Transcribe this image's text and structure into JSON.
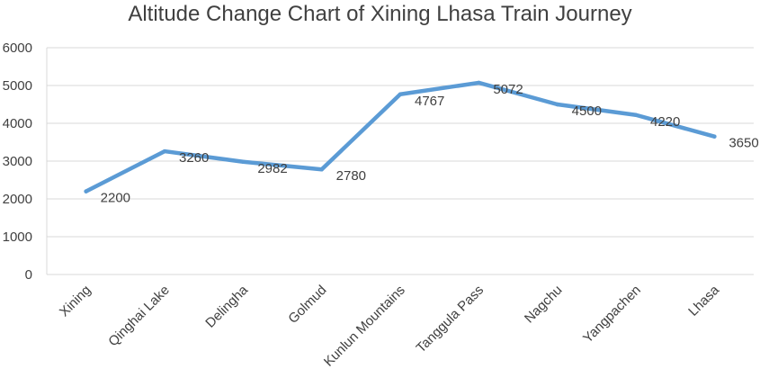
{
  "chart_data": {
    "type": "line",
    "title": "Altitude Change Chart of Xining Lhasa Train Journey",
    "xlabel": "",
    "ylabel": "",
    "categories": [
      "Xining",
      "Qinghai Lake",
      "Delingha",
      "Golmud",
      "Kunlun Mountains",
      "Tanggula Pass",
      "Nagchu",
      "Yangpachen",
      "Lhasa"
    ],
    "series": [
      {
        "values": [
          2200,
          3260,
          2982,
          2780,
          4767,
          5072,
          4500,
          4220,
          3650
        ]
      }
    ],
    "ylim": [
      0,
      6000
    ],
    "yticks": [
      0,
      1000,
      2000,
      3000,
      4000,
      5000,
      6000
    ],
    "grid": true,
    "legend": "none",
    "colors": {
      "line": "#5B9BD5",
      "grid": "#D9D9D9",
      "text": "#404040"
    }
  }
}
